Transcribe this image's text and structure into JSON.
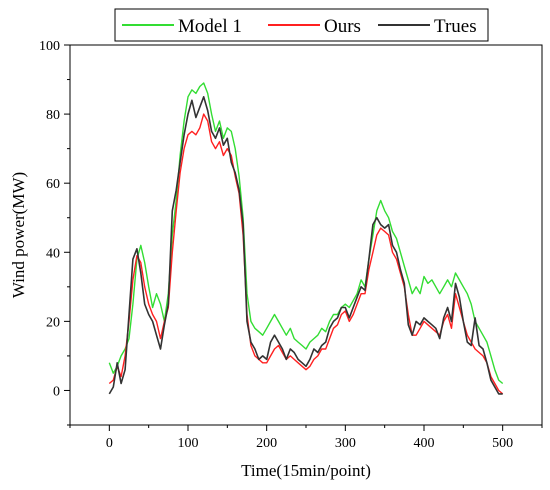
{
  "chart_data": {
    "type": "line",
    "title": "",
    "xlabel": "Time(15min/point)",
    "ylabel": "Wind power(MW)",
    "xlim": [
      -50,
      550
    ],
    "ylim": [
      -10,
      100
    ],
    "xticks": [
      0,
      100,
      200,
      300,
      400,
      500
    ],
    "yticks": [
      0,
      20,
      40,
      60,
      80,
      100
    ],
    "grid": false,
    "legend": "top",
    "series": [
      {
        "name": "Model 1",
        "color": "#33dd33",
        "x": [
          0,
          5,
          10,
          15,
          20,
          25,
          30,
          35,
          40,
          45,
          50,
          55,
          60,
          65,
          70,
          75,
          80,
          85,
          90,
          95,
          100,
          105,
          110,
          115,
          120,
          125,
          130,
          135,
          140,
          145,
          150,
          155,
          160,
          165,
          170,
          175,
          180,
          185,
          190,
          195,
          200,
          205,
          210,
          215,
          220,
          225,
          230,
          235,
          240,
          245,
          250,
          255,
          260,
          265,
          270,
          275,
          280,
          285,
          290,
          295,
          300,
          305,
          310,
          315,
          320,
          325,
          330,
          335,
          340,
          345,
          350,
          355,
          360,
          365,
          370,
          375,
          380,
          385,
          390,
          395,
          400,
          405,
          410,
          415,
          420,
          425,
          430,
          435,
          440,
          445,
          450,
          455,
          460,
          465,
          470,
          475,
          480,
          485,
          490,
          495,
          500
        ],
        "y": [
          8,
          5,
          7,
          10,
          12,
          15,
          25,
          38,
          42,
          37,
          30,
          24,
          28,
          25,
          20,
          28,
          45,
          55,
          68,
          78,
          85,
          87,
          86,
          88,
          89,
          86,
          80,
          75,
          78,
          73,
          76,
          75,
          70,
          62,
          50,
          28,
          20,
          18,
          17,
          16,
          18,
          20,
          22,
          20,
          18,
          16,
          18,
          15,
          14,
          13,
          12,
          14,
          15,
          16,
          18,
          17,
          20,
          22,
          22,
          24,
          25,
          24,
          26,
          28,
          32,
          30,
          38,
          45,
          52,
          55,
          52,
          50,
          46,
          44,
          40,
          36,
          32,
          28,
          30,
          28,
          33,
          31,
          32,
          30,
          28,
          30,
          32,
          30,
          34,
          32,
          30,
          28,
          25,
          20,
          18,
          16,
          14,
          10,
          6,
          3,
          2
        ]
      },
      {
        "name": "Ours",
        "color": "#ff2020",
        "x": [
          0,
          5,
          10,
          15,
          20,
          25,
          30,
          35,
          40,
          45,
          50,
          55,
          60,
          65,
          70,
          75,
          80,
          85,
          90,
          95,
          100,
          105,
          110,
          115,
          120,
          125,
          130,
          135,
          140,
          145,
          150,
          155,
          160,
          165,
          170,
          175,
          180,
          185,
          190,
          195,
          200,
          205,
          210,
          215,
          220,
          225,
          230,
          235,
          240,
          245,
          250,
          255,
          260,
          265,
          270,
          275,
          280,
          285,
          290,
          295,
          300,
          305,
          310,
          315,
          320,
          325,
          330,
          335,
          340,
          345,
          350,
          355,
          360,
          365,
          370,
          375,
          380,
          385,
          390,
          395,
          400,
          405,
          410,
          415,
          420,
          425,
          430,
          435,
          440,
          445,
          450,
          455,
          460,
          465,
          470,
          475,
          480,
          485,
          490,
          495,
          500
        ],
        "y": [
          2,
          3,
          7,
          4,
          10,
          20,
          32,
          39,
          37,
          30,
          25,
          22,
          20,
          15,
          20,
          24,
          40,
          52,
          63,
          70,
          74,
          75,
          74,
          76,
          80,
          78,
          72,
          70,
          72,
          68,
          70,
          68,
          62,
          57,
          45,
          22,
          13,
          10,
          9,
          8,
          8,
          10,
          12,
          13,
          11,
          9,
          10,
          9,
          8,
          7,
          6,
          7,
          9,
          10,
          12,
          12,
          15,
          18,
          19,
          22,
          23,
          20,
          22,
          25,
          28,
          28,
          35,
          40,
          45,
          47,
          46,
          45,
          40,
          38,
          34,
          30,
          22,
          16,
          16,
          18,
          20,
          19,
          18,
          17,
          16,
          20,
          22,
          18,
          28,
          24,
          20,
          16,
          14,
          12,
          11,
          10,
          8,
          4,
          2,
          0,
          -1
        ]
      },
      {
        "name": "Trues",
        "color": "#333333",
        "x": [
          0,
          5,
          10,
          15,
          20,
          25,
          30,
          35,
          40,
          45,
          50,
          55,
          60,
          65,
          70,
          75,
          80,
          85,
          90,
          95,
          100,
          105,
          110,
          115,
          120,
          125,
          130,
          135,
          140,
          145,
          150,
          155,
          160,
          165,
          170,
          175,
          180,
          185,
          190,
          195,
          200,
          205,
          210,
          215,
          220,
          225,
          230,
          235,
          240,
          245,
          250,
          255,
          260,
          265,
          270,
          275,
          280,
          285,
          290,
          295,
          300,
          305,
          310,
          315,
          320,
          325,
          330,
          335,
          340,
          345,
          350,
          355,
          360,
          365,
          370,
          375,
          380,
          385,
          390,
          395,
          400,
          405,
          410,
          415,
          420,
          425,
          430,
          435,
          440,
          445,
          450,
          455,
          460,
          465,
          470,
          475,
          480,
          485,
          490,
          495,
          500
        ],
        "y": [
          -1,
          1,
          8,
          2,
          6,
          22,
          38,
          41,
          34,
          25,
          22,
          20,
          16,
          12,
          19,
          25,
          52,
          58,
          66,
          74,
          80,
          84,
          79,
          82,
          85,
          81,
          75,
          73,
          76,
          71,
          73,
          66,
          63,
          58,
          48,
          20,
          14,
          12,
          9,
          10,
          9,
          14,
          16,
          14,
          12,
          9,
          12,
          11,
          9,
          8,
          7,
          9,
          12,
          11,
          13,
          14,
          18,
          20,
          21,
          24,
          24,
          21,
          24,
          27,
          30,
          29,
          38,
          48,
          50,
          48,
          47,
          48,
          42,
          40,
          35,
          31,
          19,
          16,
          20,
          19,
          21,
          20,
          19,
          18,
          15,
          21,
          24,
          20,
          31,
          27,
          20,
          14,
          13,
          21,
          13,
          12,
          8,
          3,
          1,
          -1,
          -1
        ]
      }
    ]
  }
}
